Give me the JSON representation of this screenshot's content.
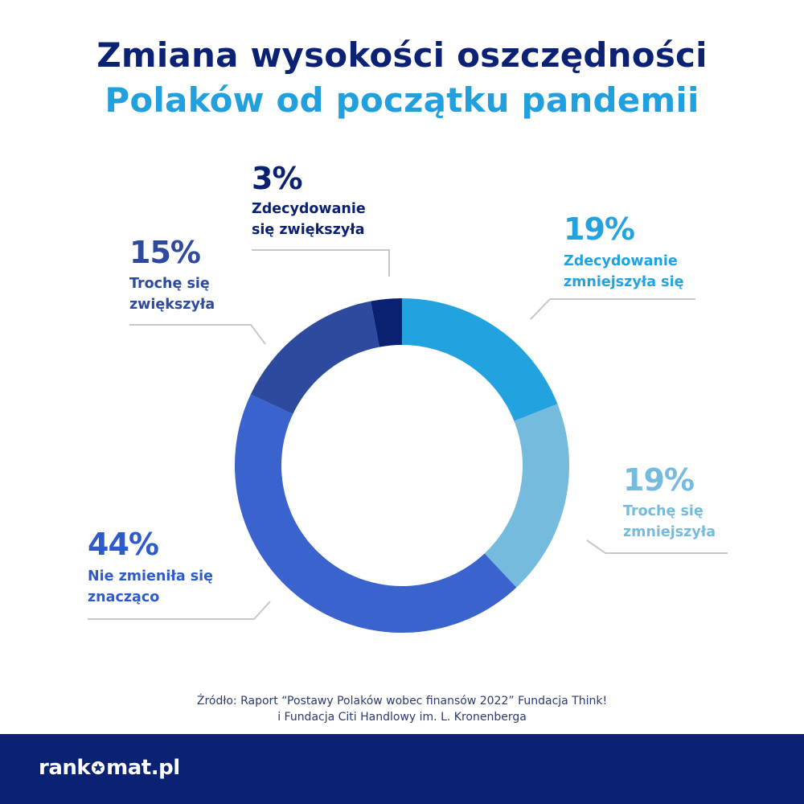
{
  "colors": {
    "navy": "#0b2174",
    "accent_blue": "#22a0de",
    "footer_bg": "#0b2174",
    "source_text": "#2b3a72",
    "leader_line": "#c8c8c8"
  },
  "header": {
    "title_line1": "Zmiana wysokości oszczędności",
    "title_line2": "Polaków od początku pandemii"
  },
  "chart_data": {
    "type": "pie",
    "donut": true,
    "unit": "%",
    "slices": [
      {
        "value": 19,
        "label_pct": "19%",
        "label_lines": [
          "Zdecydowanie",
          "zmniejszyła się"
        ],
        "color": "#22a3df",
        "text_color": "#22a3df"
      },
      {
        "value": 19,
        "label_pct": "19%",
        "label_lines": [
          "Trochę się",
          "zmniejszyła"
        ],
        "color": "#74bbde",
        "text_color": "#74bbde"
      },
      {
        "value": 44,
        "label_pct": "44%",
        "label_lines": [
          "Nie zmieniła się",
          "znacząco"
        ],
        "color": "#3b63cd",
        "text_color": "#2f5bc9"
      },
      {
        "value": 15,
        "label_pct": "15%",
        "label_lines": [
          "Trochę się",
          "zwiększyła"
        ],
        "color": "#2e4a9e",
        "text_color": "#2e4a9e"
      },
      {
        "value": 3,
        "label_pct": "3%",
        "label_lines": [
          "Zdecydowanie",
          "się zwiększyła"
        ],
        "color": "#0a2070",
        "text_color": "#0a2070"
      }
    ]
  },
  "source": {
    "line1": "Źródło: Raport “Postawy Polaków wobec finansów 2022” Fundacja Think!",
    "line2": "i Fundacja Citi Handlowy im. L. Kronenberga"
  },
  "footer": {
    "logo_part1": "rank",
    "logo_part2": "mat.pl",
    "logo_icon": "star-o-icon"
  }
}
